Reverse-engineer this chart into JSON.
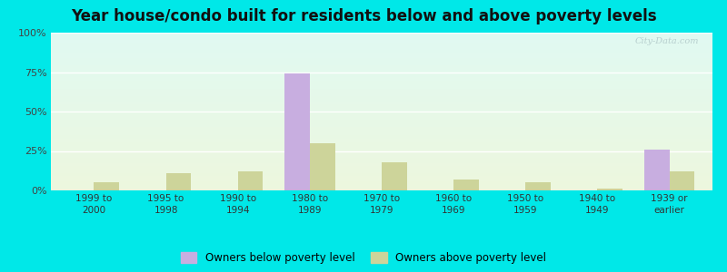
{
  "title": "Year house/condo built for residents below and above poverty levels",
  "categories": [
    "1999 to\n2000",
    "1995 to\n1998",
    "1990 to\n1994",
    "1980 to\n1989",
    "1970 to\n1979",
    "1960 to\n1969",
    "1950 to\n1959",
    "1940 to\n1949",
    "1939 or\nearlier"
  ],
  "below_poverty": [
    0,
    0,
    0,
    74,
    0,
    0,
    0,
    0,
    26
  ],
  "above_poverty": [
    5,
    11,
    12,
    30,
    18,
    7,
    5,
    1,
    12
  ],
  "below_color": "#c8aee0",
  "above_color": "#cdd49a",
  "ylim": [
    0,
    100
  ],
  "yticks": [
    0,
    25,
    50,
    75,
    100
  ],
  "ytick_labels": [
    "0%",
    "25%",
    "50%",
    "75%",
    "100%"
  ],
  "legend_below": "Owners below poverty level",
  "legend_above": "Owners above poverty level",
  "outer_bg": "#00e8e8",
  "title_fontsize": 12,
  "bar_width": 0.35,
  "watermark": "City-Data.com"
}
